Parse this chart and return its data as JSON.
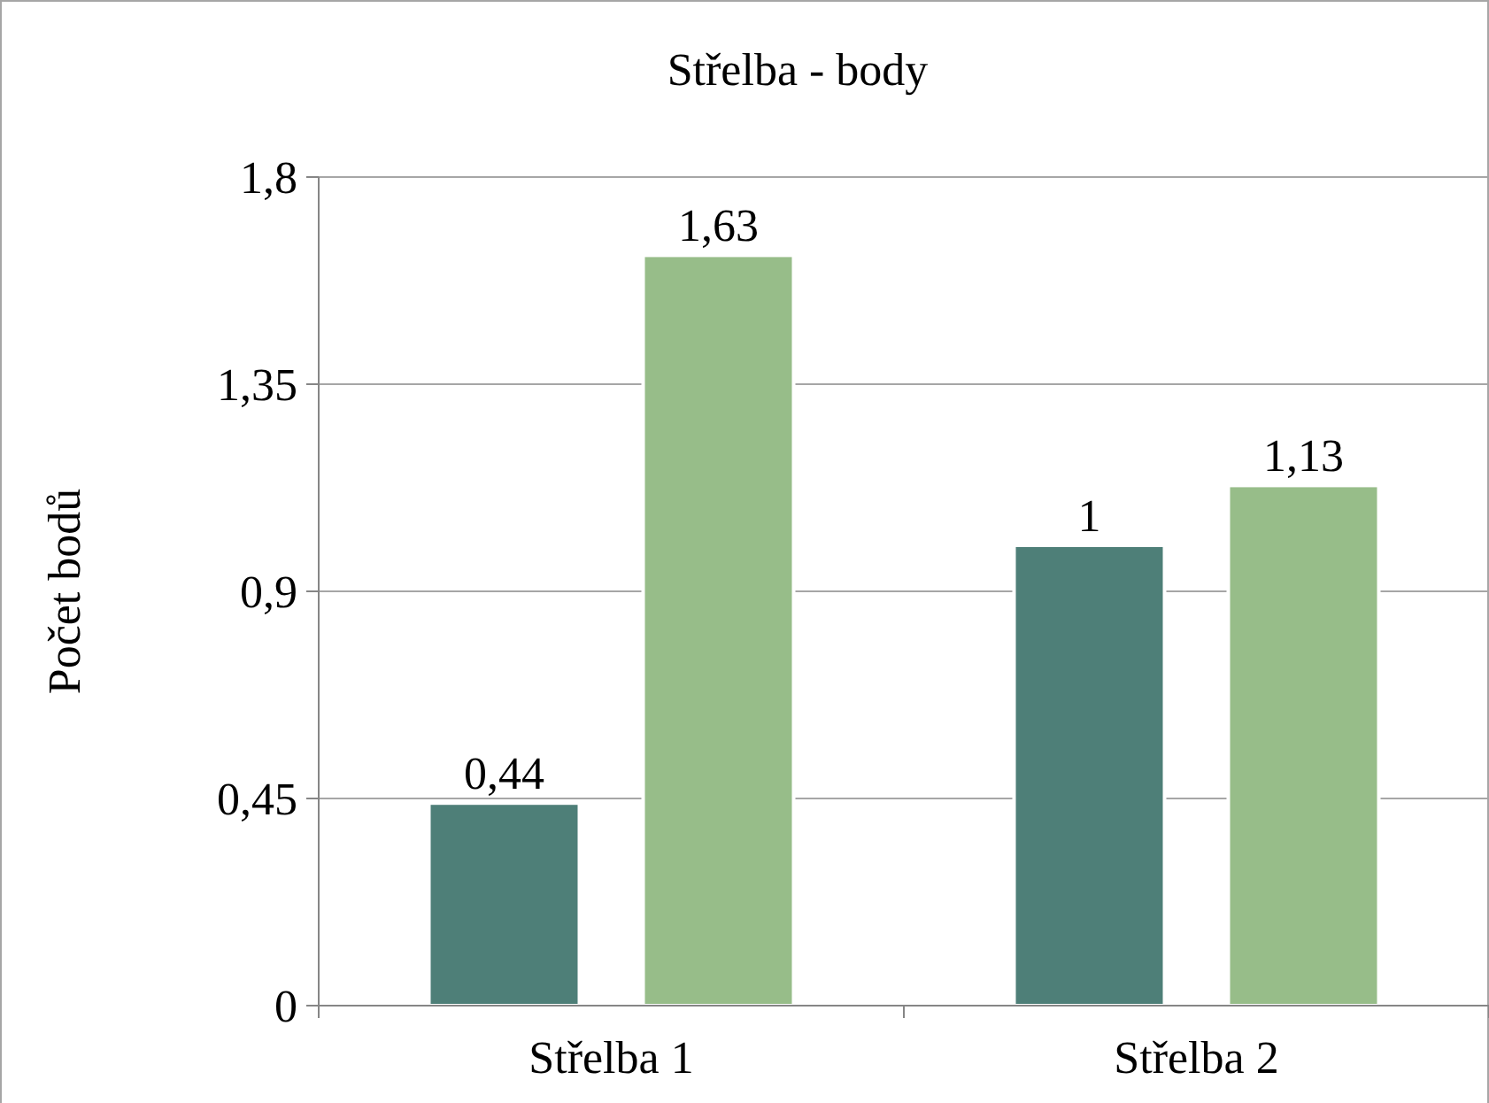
{
  "chart_data": {
    "type": "bar",
    "title": "Střelba - body",
    "ylabel": "Počet bodů",
    "categories": [
      "Střelba 1",
      "Střelba 2"
    ],
    "series": [
      {
        "color": "#4e7f78",
        "values": [
          0.44,
          1
        ],
        "value_labels": [
          "0,44",
          "1"
        ]
      },
      {
        "color": "#97bd89",
        "values": [
          1.63,
          1.13
        ],
        "value_labels": [
          "1,63",
          "1,13"
        ]
      }
    ],
    "ylim": [
      0,
      1.8
    ],
    "yticks": [
      {
        "value": 0,
        "label": "0"
      },
      {
        "value": 0.45,
        "label": "0,45"
      },
      {
        "value": 0.9,
        "label": "0,9"
      },
      {
        "value": 1.35,
        "label": "1,35"
      },
      {
        "value": 1.8,
        "label": "1,8"
      }
    ],
    "grid": "y"
  }
}
